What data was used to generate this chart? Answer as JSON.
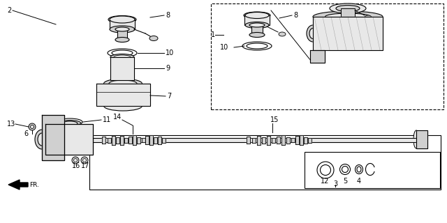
{
  "bg_color": "#ffffff",
  "line_color": "#000000",
  "gray_light": "#e8e8e8",
  "gray_mid": "#d0d0d0",
  "gray_dark": "#b0b0b0"
}
